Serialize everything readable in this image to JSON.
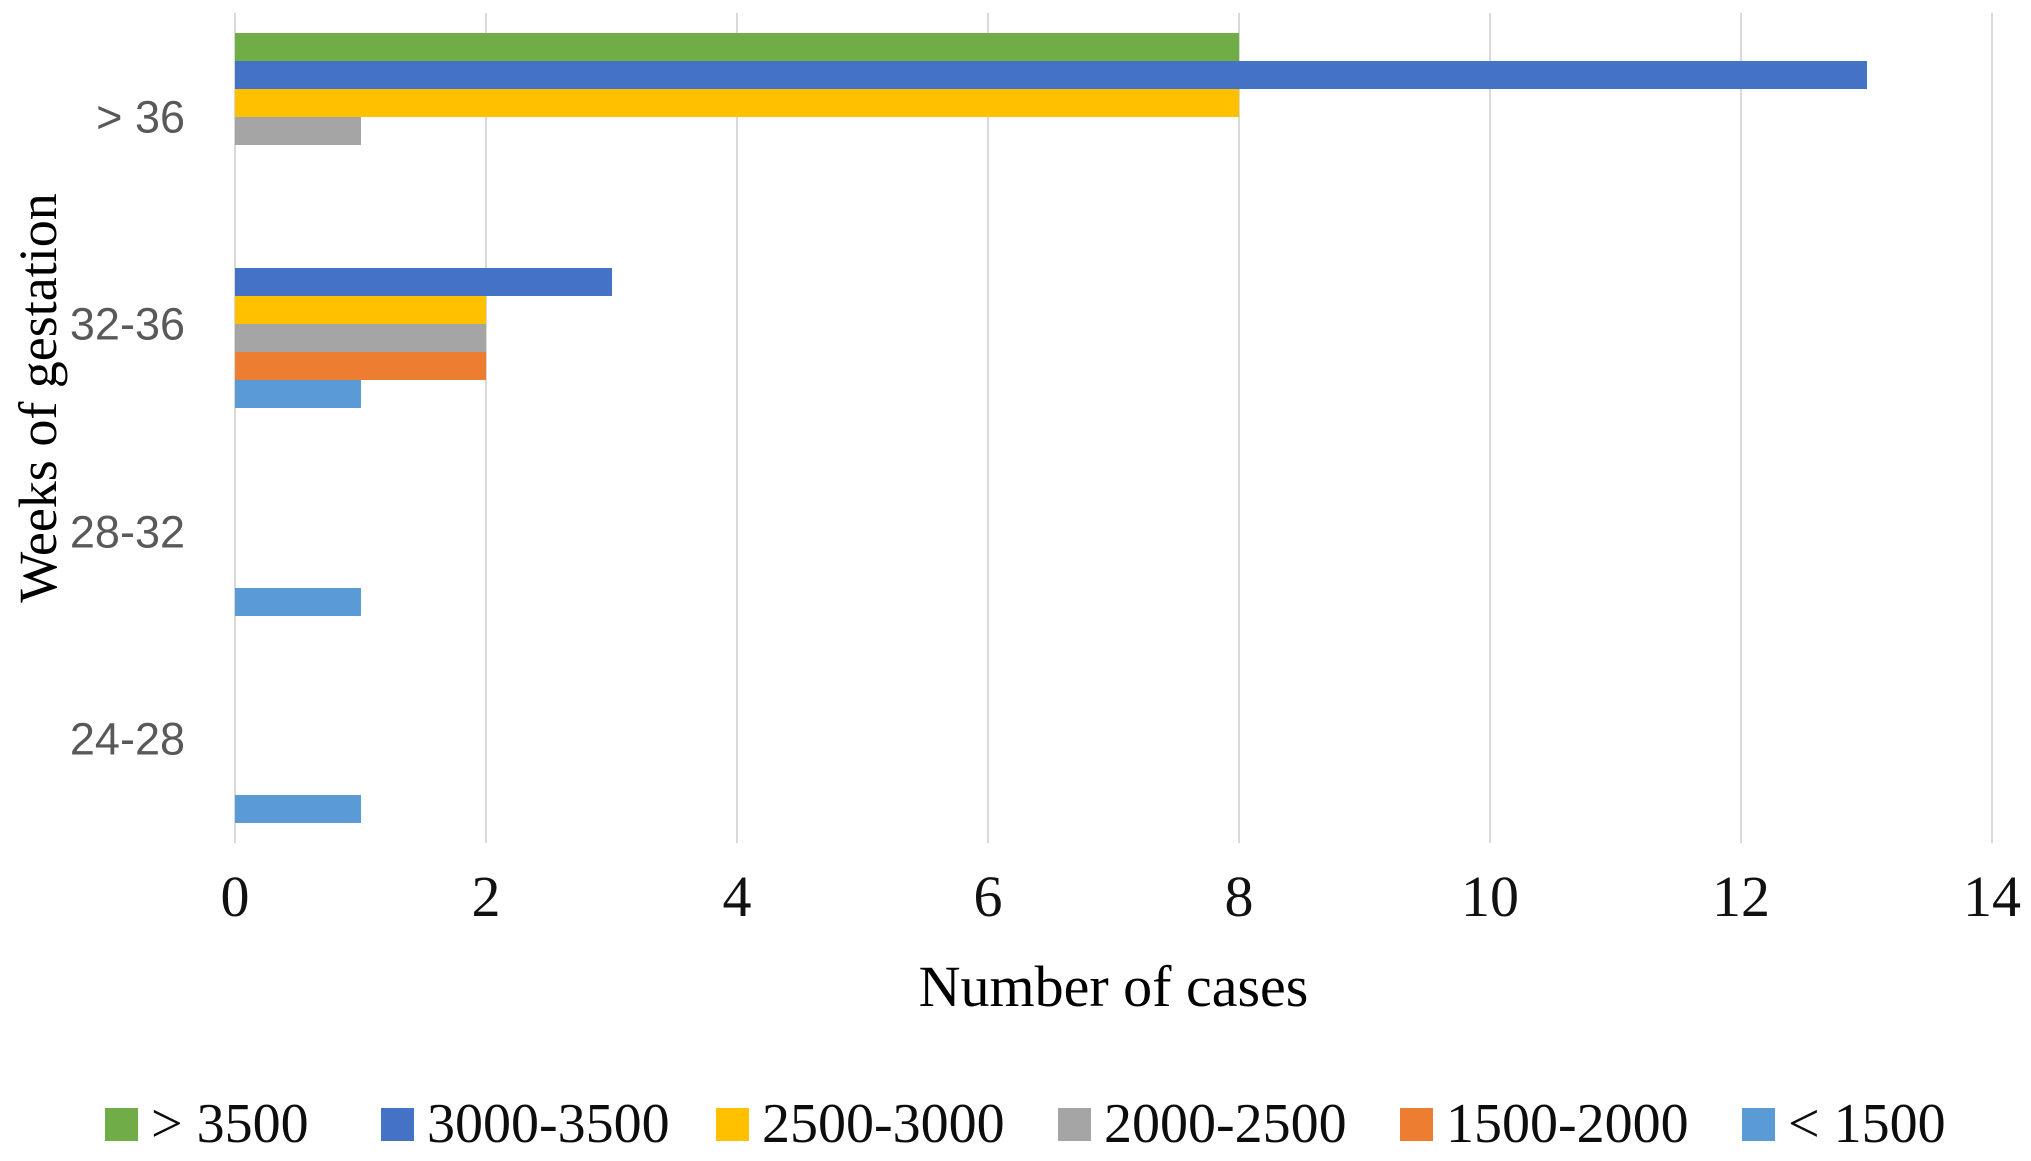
{
  "chart_data": {
    "type": "bar",
    "orientation": "horizontal",
    "title": "",
    "xlabel": "Number of cases",
    "ylabel": "Weeks of gestation",
    "categories": [
      "> 36",
      "32-36",
      "28-32",
      "24-28"
    ],
    "series": [
      {
        "name": "> 3500",
        "color": "#70AD47",
        "values": [
          8,
          0,
          0,
          0
        ]
      },
      {
        "name": "3000-3500",
        "color": "#4472C4",
        "values": [
          13,
          3,
          0,
          0
        ]
      },
      {
        "name": "2500-3000",
        "color": "#FFC000",
        "values": [
          8,
          2,
          0,
          0
        ]
      },
      {
        "name": "2000-2500",
        "color": "#A5A5A5",
        "values": [
          1,
          2,
          0,
          0
        ]
      },
      {
        "name": "1500-2000",
        "color": "#ED7D31",
        "values": [
          0,
          2,
          0,
          0
        ]
      },
      {
        "name": "< 1500",
        "color": "#5B9BD5",
        "values": [
          0,
          1,
          1,
          1
        ]
      }
    ],
    "xlim": [
      0,
      14
    ],
    "xticks": [
      0,
      2,
      4,
      6,
      8,
      10,
      12,
      14
    ],
    "grid": "vertical",
    "gridline_color": "#D9D9D9",
    "category_label_color": "#595959",
    "legend_position": "bottom"
  }
}
